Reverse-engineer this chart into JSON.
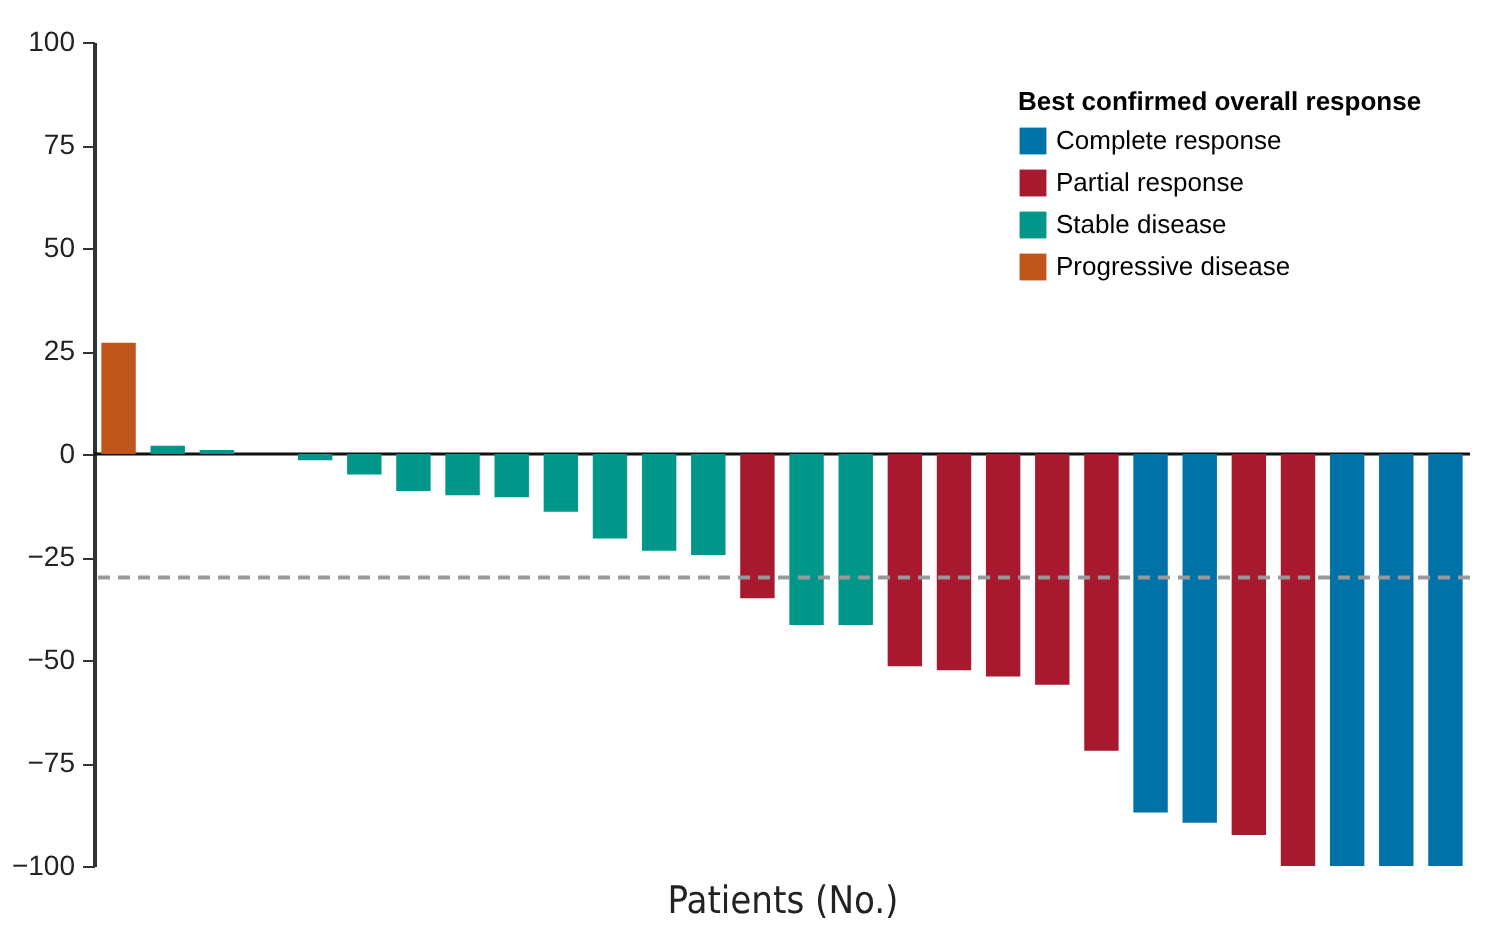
{
  "chart_data": {
    "type": "bar",
    "xlabel": "Patients (No.)",
    "legend_title": "Best confirmed overall response",
    "categories": [
      null,
      null,
      null,
      null,
      null,
      null,
      null,
      null,
      null,
      null,
      null,
      null,
      null,
      null,
      null,
      null,
      null,
      null,
      null,
      null,
      null,
      null,
      null,
      null,
      null,
      null,
      null,
      null
    ],
    "series": [
      {
        "name": "Complete response",
        "color": "#0072a8",
        "values": [
          null,
          null,
          null,
          null,
          null,
          null,
          null,
          null,
          null,
          null,
          null,
          null,
          null,
          null,
          null,
          null,
          null,
          null,
          null,
          null,
          null,
          -87,
          -89.5,
          null,
          null,
          -100,
          -100,
          -100
        ]
      },
      {
        "name": "Partial response",
        "color": "#a6192e",
        "values": [
          null,
          null,
          null,
          null,
          null,
          null,
          null,
          null,
          null,
          null,
          null,
          null,
          null,
          -35,
          null,
          null,
          -51.5,
          -52.5,
          -54,
          -56,
          -72,
          null,
          null,
          -92.5,
          -100,
          null,
          null,
          null
        ]
      },
      {
        "name": "Stable disease",
        "color": "#00968a",
        "values": [
          null,
          2,
          1,
          null,
          -1.5,
          -5,
          -9,
          -10,
          -10.5,
          -14,
          -20.5,
          -23.5,
          -24.5,
          null,
          -41.5,
          -41.5,
          null,
          null,
          null,
          null,
          null,
          null,
          null,
          null,
          null,
          null,
          null,
          null
        ]
      },
      {
        "name": "Progressive disease",
        "color": "#c0561c",
        "values": [
          27,
          null,
          null,
          null,
          null,
          null,
          null,
          null,
          null,
          null,
          null,
          null,
          null,
          null,
          null,
          null,
          null,
          null,
          null,
          null,
          null,
          null,
          null,
          null,
          null,
          null,
          null,
          null
        ]
      }
    ],
    "ylim": [
      -100,
      100
    ],
    "yticks": [
      -100,
      -75,
      -50,
      -25,
      0,
      25,
      50,
      75,
      100
    ],
    "ref_lines": [
      {
        "axis": "y",
        "value": -30,
        "color": "#999999",
        "line_style": "dashed"
      }
    ],
    "legend": "top right"
  }
}
